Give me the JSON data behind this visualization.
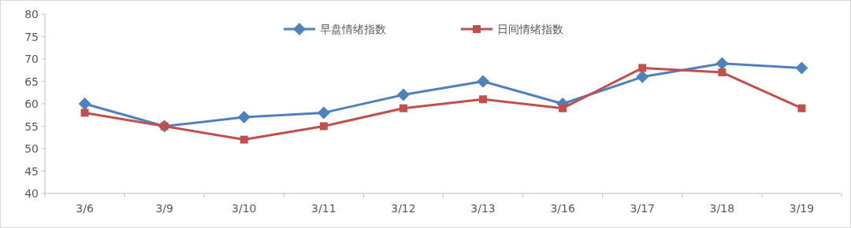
{
  "chart_data": {
    "type": "line",
    "categories": [
      "3/6",
      "3/9",
      "3/10",
      "3/11",
      "3/12",
      "3/13",
      "3/16",
      "3/17",
      "3/18",
      "3/19"
    ],
    "series": [
      {
        "name": "早盘情绪指数",
        "color": "#4f81bd",
        "marker": "diamond",
        "values": [
          60,
          55,
          57,
          58,
          62,
          65,
          60,
          66,
          69,
          68
        ]
      },
      {
        "name": "日间情绪指数",
        "color": "#c0504d",
        "marker": "square",
        "values": [
          58,
          55,
          52,
          55,
          59,
          61,
          59,
          68,
          67,
          59
        ]
      }
    ],
    "ylim": [
      40,
      80
    ],
    "yticks": [
      40,
      45,
      50,
      55,
      60,
      65,
      70,
      75,
      80
    ],
    "grid": false,
    "legend": "top",
    "line_style": "solid"
  }
}
